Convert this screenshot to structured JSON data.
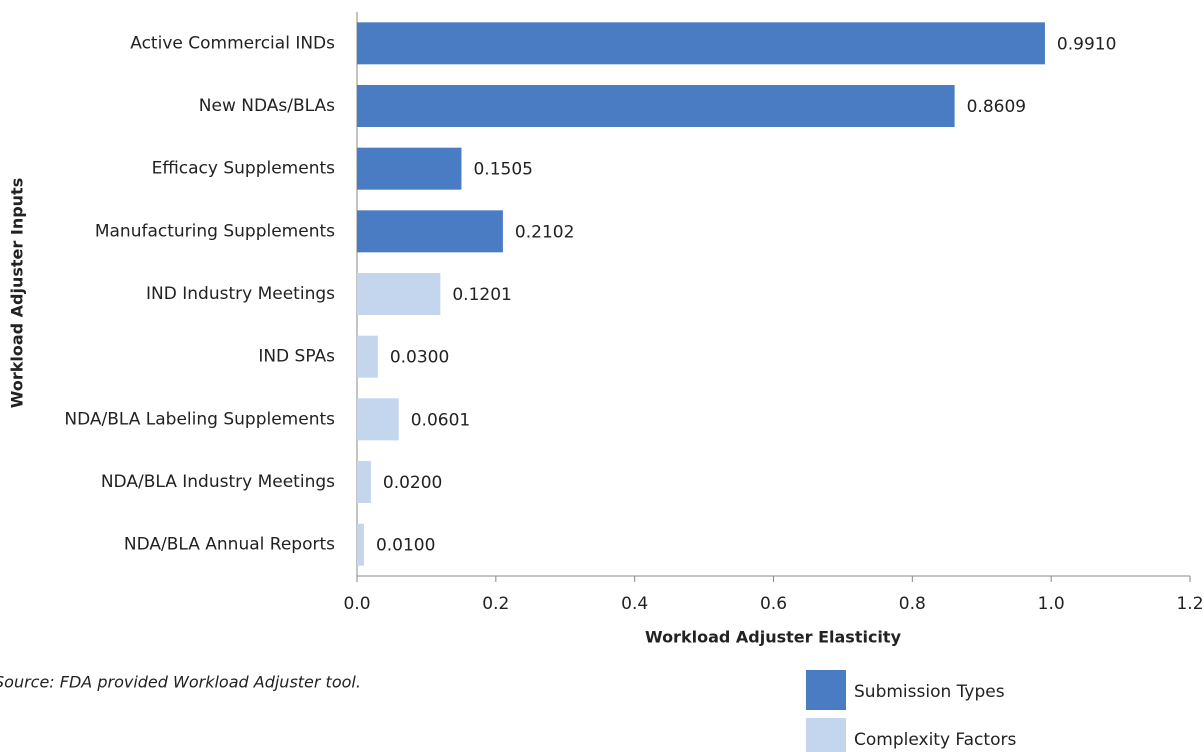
{
  "chart_data": {
    "type": "hbar",
    "ylabel": "Workload Adjuster Inputs",
    "xlabel": "Workload Adjuster Elasticity",
    "source": "Source: FDA provided Workload Adjuster tool.",
    "categories": [
      "Active Commercial INDs",
      "New NDAs/BLAs",
      "Efficacy Supplements",
      "Manufacturing Supplements",
      "IND Industry Meetings",
      "IND SPAs",
      "NDA/BLA Labeling Supplements",
      "NDA/BLA Industry Meetings",
      "NDA/BLA Annual Reports"
    ],
    "series": [
      {
        "name": "Submission Types",
        "color": "#4a7cc4",
        "values": [
          0.991,
          0.8609,
          0.1505,
          0.2102,
          null,
          null,
          null,
          null,
          null
        ],
        "value_labels": [
          "0.9910",
          "0.8609",
          "0.1505",
          "0.2102",
          null,
          null,
          null,
          null,
          null
        ]
      },
      {
        "name": "Complexity Factors",
        "color": "#c4d5ee",
        "values": [
          null,
          null,
          null,
          null,
          0.1201,
          0.03,
          0.0601,
          0.02,
          0.01
        ],
        "value_labels": [
          null,
          null,
          null,
          null,
          "0.1201",
          "0.0300",
          "0.0601",
          "0.0200",
          "0.0100"
        ]
      }
    ],
    "xlim": [
      0,
      1.2
    ],
    "xticks": [
      {
        "value": 0,
        "label": "0.0"
      },
      0.2,
      0.4,
      0.6,
      0.8,
      {
        "value": 1,
        "label": "1.0"
      },
      1.2
    ],
    "legend": "bottom-right"
  }
}
